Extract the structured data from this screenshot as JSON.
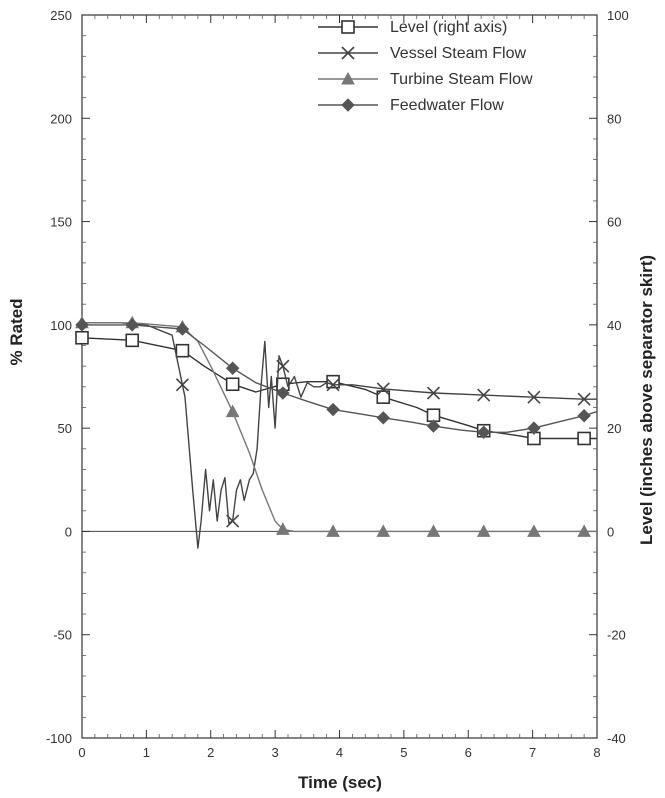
{
  "chart_data": {
    "type": "line",
    "title": "",
    "xlabel": "Time (sec)",
    "ylabel": "% Rated",
    "y2label": "Level (inches above separator skirt)",
    "xlim": [
      0,
      8
    ],
    "ylim": [
      -100,
      250
    ],
    "y2lim": [
      -40,
      100
    ],
    "grid": false,
    "legend_position": "top-right",
    "x_ticks": [
      "0",
      "1",
      "2",
      "3",
      "4",
      "5",
      "6",
      "7",
      "8"
    ],
    "y_ticks": [
      "-100",
      "-50",
      "0",
      "50",
      "100",
      "150",
      "200",
      "250"
    ],
    "y2_ticks": [
      "-40",
      "-20",
      "0",
      "20",
      "40",
      "60",
      "80",
      "100"
    ],
    "series": [
      {
        "name": "Level (right axis)",
        "axis": "right",
        "marker": "square",
        "color": "#333333",
        "x": [
          0,
          0.78,
          1.56,
          1.9,
          2.34,
          2.7,
          3.12,
          3.5,
          3.9,
          4.4,
          4.68,
          5.2,
          5.46,
          6.0,
          6.24,
          6.8,
          7.02,
          7.5,
          7.8,
          8.0
        ],
        "y": [
          37.5,
          37.0,
          35.0,
          32.0,
          28.5,
          27.0,
          28.5,
          29.0,
          29.0,
          27.5,
          26.0,
          24.0,
          22.5,
          20.5,
          19.5,
          18.5,
          18.0,
          18.0,
          18.0,
          18.0
        ],
        "marker_x": [
          0,
          0.78,
          1.56,
          2.34,
          3.12,
          3.9,
          4.68,
          5.46,
          6.24,
          7.02,
          7.8
        ]
      },
      {
        "name": "Vessel Steam Flow",
        "axis": "left",
        "marker": "x",
        "color": "#444444",
        "x": [
          0,
          0.6,
          1.0,
          1.4,
          1.6,
          1.72,
          1.8,
          1.85,
          1.92,
          1.98,
          2.04,
          2.1,
          2.16,
          2.22,
          2.28,
          2.34,
          2.4,
          2.46,
          2.52,
          2.6,
          2.66,
          2.72,
          2.78,
          2.84,
          2.9,
          2.94,
          3.0,
          3.06,
          3.12,
          3.2,
          3.3,
          3.4,
          3.5,
          3.6,
          3.7,
          3.8,
          3.9,
          4.2,
          4.68,
          5.46,
          6.24,
          7.02,
          7.8,
          8.0
        ],
        "y": [
          101,
          101,
          100,
          95,
          65,
          20,
          -8,
          5,
          30,
          10,
          25,
          5,
          20,
          26,
          4,
          5,
          20,
          25,
          15,
          25,
          28,
          40,
          70,
          92,
          60,
          75,
          50,
          85,
          80,
          70,
          75,
          65,
          72,
          70,
          70,
          72,
          71,
          71,
          69,
          67,
          66,
          65,
          64,
          64
        ],
        "marker_x": [
          1.56,
          2.34,
          3.12,
          3.9,
          4.68,
          5.46,
          6.24,
          7.02,
          7.8
        ]
      },
      {
        "name": "Turbine Steam Flow",
        "axis": "left",
        "marker": "triangle",
        "color": "#777777",
        "x": [
          0,
          0.78,
          1.2,
          1.56,
          1.8,
          2.0,
          2.34,
          2.6,
          2.8,
          3.0,
          3.12,
          3.3,
          3.9,
          4.68,
          5.46,
          6.24,
          7.02,
          7.8,
          8.0
        ],
        "y": [
          101,
          101,
          100,
          99,
          92,
          80,
          58,
          38,
          20,
          5,
          1,
          0,
          0,
          0,
          0,
          0,
          0,
          0,
          0
        ],
        "marker_x": [
          0,
          0.78,
          1.56,
          2.34,
          3.12,
          3.9,
          4.68,
          5.46,
          6.24,
          7.02,
          7.8
        ]
      },
      {
        "name": "Feedwater Flow",
        "axis": "left",
        "marker": "diamond",
        "color": "#555555",
        "x": [
          0,
          0.78,
          1.56,
          1.9,
          2.34,
          2.7,
          3.12,
          3.5,
          3.9,
          4.3,
          4.68,
          5.1,
          5.46,
          5.9,
          6.24,
          6.6,
          7.02,
          7.4,
          7.8,
          8.0
        ],
        "y": [
          100,
          100,
          98,
          90,
          79,
          72,
          67,
          63,
          59,
          57,
          55,
          53,
          51,
          49,
          48,
          48,
          50,
          53,
          56,
          58
        ],
        "marker_x": [
          0,
          0.78,
          1.56,
          2.34,
          3.12,
          3.9,
          4.68,
          5.46,
          6.24,
          7.02,
          7.8
        ]
      }
    ]
  }
}
